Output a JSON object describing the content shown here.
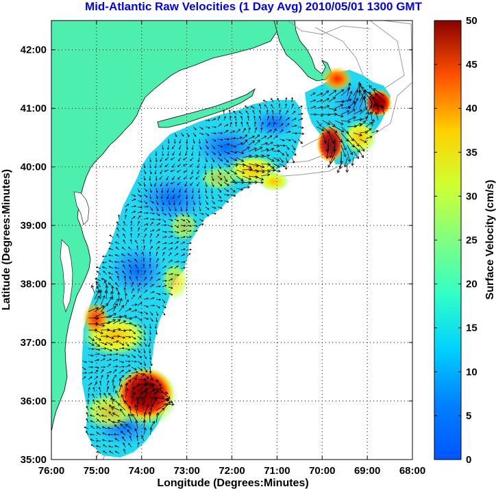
{
  "title": "Mid-Atlantic Raw Velocities (1 Day Avg) 2010/05/01 1300 GMT",
  "x_axis": {
    "label": "Longitude (Degrees:Minutes)",
    "ticks": [
      "76:00",
      "75:00",
      "74:00",
      "73:00",
      "72:00",
      "71:00",
      "70:00",
      "69:00",
      "68:00"
    ]
  },
  "y_axis": {
    "label": "Latitude (Degrees:Minutes)",
    "ticks": [
      "35:00",
      "36:00",
      "37:00",
      "38:00",
      "39:00",
      "40:00",
      "41:00",
      "42:00"
    ]
  },
  "colorbar": {
    "label": "Surface Velocity (cm/s)",
    "ticks": [
      "0",
      "5",
      "10",
      "15",
      "20",
      "25",
      "30",
      "35",
      "40",
      "45",
      "50"
    ],
    "range": [
      0,
      50
    ],
    "colormap": "jet"
  },
  "colors": {
    "land": "#4cefae",
    "water_background": "#ffffff",
    "grid": "#000000",
    "bathymetry_contour": "#9a9a9a",
    "title": "#0000ff"
  },
  "chart_data": {
    "type": "heatmap",
    "title": "Mid-Atlantic Raw Velocities (1 Day Avg) 2010/05/01 1300 GMT",
    "xlabel": "Longitude (Degrees:Minutes)",
    "ylabel": "Latitude (Degrees:Minutes)",
    "colorbar_label": "Surface Velocity (cm/s)",
    "xlim": [
      -76,
      -68
    ],
    "ylim": [
      35,
      42.5
    ],
    "clim": [
      0,
      50
    ],
    "grid": true,
    "hotspots": [
      {
        "lon": -73.9,
        "lat": 35.95,
        "speed": 48
      },
      {
        "lon": -69.8,
        "lat": 40.35,
        "speed": 42
      },
      {
        "lon": -69.5,
        "lat": 41.5,
        "speed": 40
      },
      {
        "lon": -68.8,
        "lat": 41.2,
        "speed": 40
      },
      {
        "lon": -75.0,
        "lat": 37.5,
        "speed": 32
      },
      {
        "lon": -71.6,
        "lat": 40.0,
        "speed": 27
      }
    ],
    "background_speed": 10
  }
}
